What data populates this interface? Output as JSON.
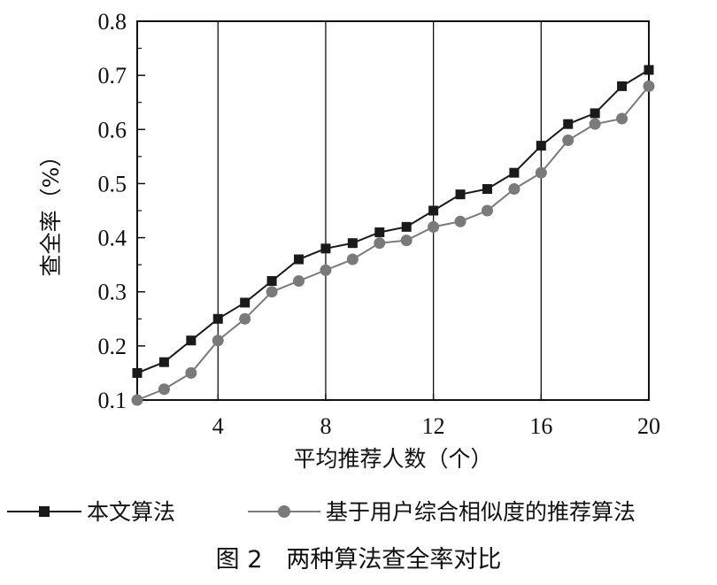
{
  "chart_data": {
    "type": "line",
    "title": "",
    "xlabel": "平均推荐人数（个）",
    "ylabel": "查全率（%）",
    "xlim": [
      1,
      20
    ],
    "ylim": [
      0.1,
      0.8
    ],
    "xticks": [
      4,
      8,
      12,
      16,
      20
    ],
    "xtick_labels": [
      "4",
      "8",
      "12",
      "16",
      "20"
    ],
    "yticks": [
      0.1,
      0.2,
      0.3,
      0.4,
      0.5,
      0.6,
      0.7,
      0.8
    ],
    "ytick_labels": [
      "0.1",
      "0.2",
      "0.3",
      "0.4",
      "0.5",
      "0.6",
      "0.7",
      "0.8"
    ],
    "grid": "vertical",
    "legend_position": "bottom",
    "x": [
      1,
      2,
      3,
      4,
      5,
      6,
      7,
      8,
      9,
      10,
      11,
      12,
      13,
      14,
      15,
      16,
      17,
      18,
      19,
      20
    ],
    "series": [
      {
        "name": "本文算法",
        "marker": "square",
        "color": "#1a1a1a",
        "values": [
          0.15,
          0.17,
          0.21,
          0.25,
          0.28,
          0.32,
          0.36,
          0.38,
          0.39,
          0.41,
          0.42,
          0.45,
          0.48,
          0.49,
          0.52,
          0.57,
          0.61,
          0.63,
          0.68,
          0.71
        ]
      },
      {
        "name": "基于用户综合相似度的推荐算法",
        "marker": "circle",
        "color": "#7a7a7a",
        "values": [
          0.1,
          0.12,
          0.15,
          0.21,
          0.25,
          0.3,
          0.32,
          0.34,
          0.36,
          0.39,
          0.395,
          0.42,
          0.43,
          0.45,
          0.49,
          0.52,
          0.58,
          0.61,
          0.62,
          0.68
        ]
      }
    ]
  },
  "caption": "图 2　两种算法查全率对比"
}
